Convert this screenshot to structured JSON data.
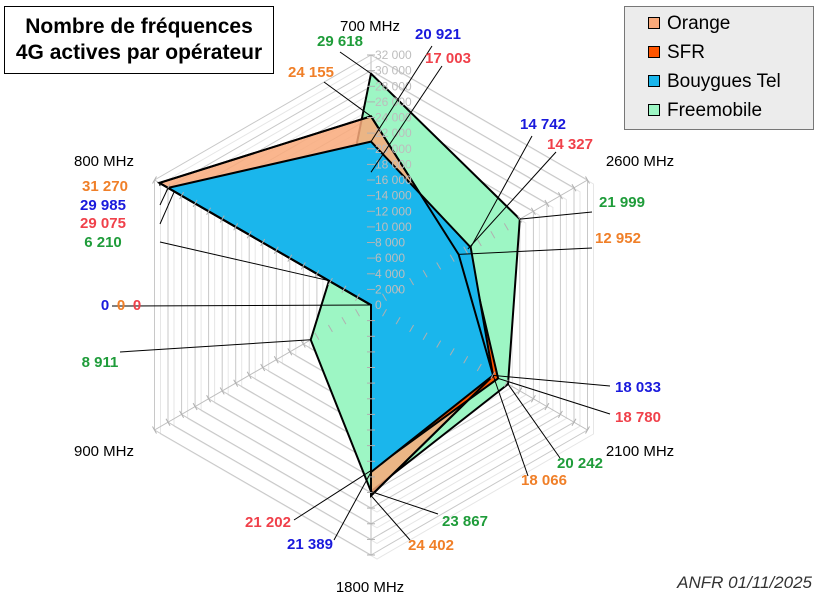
{
  "title_lines": [
    "Nombre de fréquences",
    "4G actives par opérateur"
  ],
  "source": "ANFR 01/11/2025",
  "chart_data": {
    "type": "radar",
    "title": "Nombre de fréquences 4G actives par opérateur",
    "categories": [
      "700 MHz",
      "2600 MHz",
      "2100 MHz",
      "1800 MHz",
      "900 MHz",
      "800 MHz"
    ],
    "rlim": [
      0,
      32000
    ],
    "rticks": [
      "0",
      "2 000",
      "4 000",
      "6 000",
      "8 000",
      "10 000",
      "12 000",
      "14 000",
      "16 000",
      "18 000",
      "20 000",
      "22 000",
      "24 000",
      "26 000",
      "28 000",
      "30 000",
      "32 000"
    ],
    "legend_position": "top-right",
    "series": [
      {
        "name": "Orange",
        "color": "#f9a97a",
        "labelColor": "#f07f28",
        "values": [
          24155,
          12952,
          18066,
          24402,
          0,
          31270
        ]
      },
      {
        "name": "SFR",
        "color": "#ff5500",
        "labelColor": "#f0404a",
        "values": [
          17003,
          14327,
          18780,
          21202,
          0,
          29075
        ]
      },
      {
        "name": "Bouygues Tel",
        "color": "#1ab6ec",
        "labelColor": "#1a1adc",
        "values": [
          20921,
          14742,
          18033,
          21389,
          0,
          29985
        ]
      },
      {
        "name": "Freemobile",
        "color": "#9df6c4",
        "labelColor": "#1f9c3a",
        "values": [
          29618,
          21999,
          20242,
          23867,
          8911,
          6210
        ]
      }
    ],
    "value_labels": [
      {
        "series": 3,
        "axis": 0,
        "text": "29 618"
      },
      {
        "series": 2,
        "axis": 0,
        "text": "20 921"
      },
      {
        "series": 1,
        "axis": 0,
        "text": "17 003"
      },
      {
        "series": 0,
        "axis": 0,
        "text": "24 155"
      },
      {
        "series": 2,
        "axis": 1,
        "text": "14 742"
      },
      {
        "series": 1,
        "axis": 1,
        "text": "14 327"
      },
      {
        "series": 3,
        "axis": 1,
        "text": "21 999"
      },
      {
        "series": 0,
        "axis": 1,
        "text": "12 952"
      },
      {
        "series": 2,
        "axis": 2,
        "text": "18 033"
      },
      {
        "series": 1,
        "axis": 2,
        "text": "18 780"
      },
      {
        "series": 3,
        "axis": 2,
        "text": "20 242"
      },
      {
        "series": 0,
        "axis": 2,
        "text": "18 066"
      },
      {
        "series": 3,
        "axis": 3,
        "text": "23 867"
      },
      {
        "series": 0,
        "axis": 3,
        "text": "24 402"
      },
      {
        "series": 2,
        "axis": 3,
        "text": "21 389"
      },
      {
        "series": 1,
        "axis": 3,
        "text": "21 202"
      },
      {
        "series": 3,
        "axis": 4,
        "text": "8 911"
      },
      {
        "series": 2,
        "axis": 4,
        "text": "0"
      },
      {
        "series": 0,
        "axis": 4,
        "text": "0"
      },
      {
        "series": 1,
        "axis": 4,
        "text": "0"
      },
      {
        "series": 0,
        "axis": 5,
        "text": "31 270"
      },
      {
        "series": 2,
        "axis": 5,
        "text": "29 985"
      },
      {
        "series": 1,
        "axis": 5,
        "text": "29 075"
      },
      {
        "series": 3,
        "axis": 5,
        "text": "6 210"
      }
    ]
  }
}
